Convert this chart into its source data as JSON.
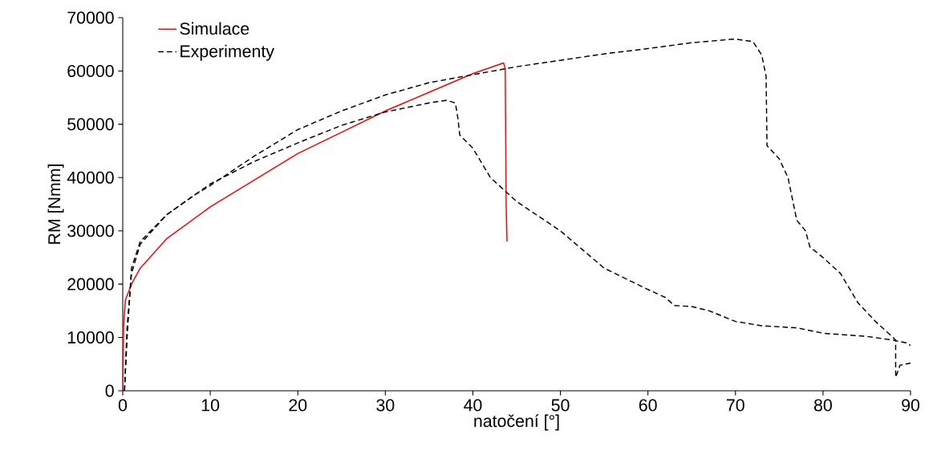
{
  "chart_data": {
    "type": "line",
    "xlabel": "natočení [°]",
    "ylabel": "RM [Nmm]",
    "xlim": [
      0,
      90
    ],
    "ylim": [
      0,
      70000
    ],
    "xticks": [
      0,
      10,
      20,
      30,
      40,
      50,
      60,
      70,
      80,
      90
    ],
    "yticks": [
      0,
      10000,
      20000,
      30000,
      40000,
      50000,
      60000,
      70000
    ],
    "grid": false,
    "legend": "top left",
    "marker": "none",
    "series": [
      {
        "name": "Simulace",
        "color": "#ff0000",
        "line_style": "solid",
        "x": [
          0,
          0.1,
          0.3,
          1,
          2,
          5,
          10,
          15,
          20,
          25,
          30,
          35,
          40,
          43.5,
          43.7,
          43.8,
          43.9
        ],
        "values": [
          0,
          12000,
          17000,
          20000,
          23000,
          28500,
          34500,
          39500,
          44500,
          48500,
          52500,
          56000,
          59500,
          61500,
          60500,
          35000,
          28000
        ]
      },
      {
        "name": "Experimenty",
        "color": "#000000",
        "line_style": "dashed",
        "x": [
          0.2,
          0.5,
          1,
          2,
          5,
          8,
          10,
          15,
          20,
          25,
          30,
          35,
          40,
          45,
          50,
          55,
          60,
          65,
          70,
          72,
          73,
          73.5,
          73.6,
          75,
          76,
          77,
          78,
          78.5,
          80,
          82,
          84,
          86,
          88,
          88.3,
          88.3,
          88.8,
          90
        ],
        "values": [
          0,
          10000,
          23000,
          28000,
          33000,
          36500,
          38500,
          44000,
          49000,
          52500,
          55500,
          57800,
          59300,
          60800,
          62000,
          63200,
          64200,
          65300,
          66000,
          65500,
          63000,
          59000,
          46000,
          43500,
          40000,
          32000,
          30000,
          27000,
          25000,
          22000,
          16500,
          13000,
          10000,
          9500,
          2500,
          4800,
          5200
        ]
      },
      {
        "color": "#000000",
        "line_style": "dashed",
        "x": [
          0.2,
          0.5,
          1,
          2,
          5,
          8,
          10,
          15,
          20,
          25,
          30,
          35,
          37,
          38,
          38.3,
          38.5,
          40,
          42,
          45,
          50,
          55,
          60,
          62,
          63,
          65,
          67,
          70,
          73,
          77,
          80,
          85,
          88,
          89.5,
          90
        ],
        "values": [
          0,
          12000,
          22000,
          27500,
          33000,
          36500,
          38800,
          43000,
          46500,
          49800,
          52300,
          54000,
          54500,
          54000,
          51000,
          48000,
          45500,
          40000,
          35500,
          30000,
          23000,
          19000,
          17500,
          16000,
          15800,
          15000,
          13000,
          12200,
          11800,
          10800,
          10200,
          9500,
          9000,
          8500
        ]
      }
    ]
  }
}
